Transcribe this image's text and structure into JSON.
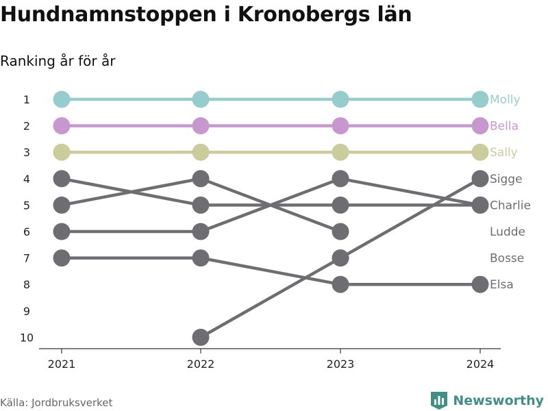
{
  "title": "Hundnamnstoppen i Kronobergs län",
  "subtitle": "Ranking år för år",
  "source": "Källa: Jordbruksverket",
  "brand": {
    "name": "Newsworthy",
    "icon": "bar-chart-logo-icon"
  },
  "colors": {
    "grey": "#6e6d72",
    "axis": "#333333"
  },
  "chart_data": {
    "type": "line",
    "x": [
      "2021",
      "2022",
      "2023",
      "2024"
    ],
    "y_ticks": [
      "1",
      "2",
      "3",
      "4",
      "5",
      "6",
      "7",
      "8",
      "9",
      "10"
    ],
    "ylim": [
      1,
      10
    ],
    "y_inverted": true,
    "grid": false,
    "series": [
      {
        "name": "Molly",
        "values": [
          1,
          1,
          1,
          1
        ],
        "color": "#96cccb"
      },
      {
        "name": "Bella",
        "values": [
          2,
          2,
          2,
          2
        ],
        "color": "#c997cf"
      },
      {
        "name": "Sally",
        "values": [
          3,
          3,
          3,
          3
        ],
        "color": "#cbcc9b"
      },
      {
        "name": "Sigge",
        "values": [
          null,
          10,
          7,
          4
        ],
        "color": "#6e6d72"
      },
      {
        "name": "Charlie",
        "values": [
          4,
          5,
          5,
          5
        ],
        "color": "#6e6d72"
      },
      {
        "name": "Ludde",
        "values": [
          5,
          4,
          6,
          null
        ],
        "color": "#6e6d72"
      },
      {
        "name": "Bosse",
        "values": [
          6,
          6,
          4,
          5
        ],
        "color": "#6e6d72"
      },
      {
        "name": "Elsa",
        "values": [
          7,
          7,
          8,
          8
        ],
        "color": "#6e6d72"
      }
    ],
    "end_labels": [
      {
        "name": "Molly",
        "rank": 1,
        "color": "#96cccb"
      },
      {
        "name": "Bella",
        "rank": 2,
        "color": "#c997cf"
      },
      {
        "name": "Sally",
        "rank": 3,
        "color": "#cbcc9b"
      },
      {
        "name": "Sigge",
        "rank": 4,
        "color": "#6e6d72"
      },
      {
        "name": "Charlie",
        "rank": 5,
        "color": "#6e6d72"
      },
      {
        "name": "Ludde",
        "rank": 6,
        "color": "#6e6d72"
      },
      {
        "name": "Bosse",
        "rank": 7,
        "color": "#6e6d72"
      },
      {
        "name": "Elsa",
        "rank": 8,
        "color": "#6e6d72"
      }
    ],
    "extra_points": [
      {
        "x": "2023",
        "rank": 7,
        "color": "#6e6d72"
      }
    ]
  }
}
